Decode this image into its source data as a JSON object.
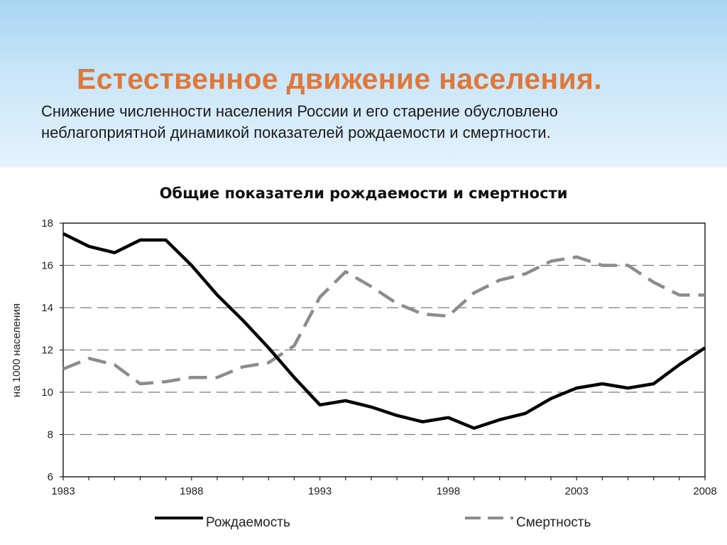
{
  "slide": {
    "title": "Естественное движение населения.",
    "subtitle": "Снижение численности населения России и его старение обусловлено неблагоприятной динамикой показателей рождаемости и смертности."
  },
  "colors": {
    "title": "#e0773a",
    "birth_line": "#000000",
    "death_line": "#8c8c8c",
    "grid": "#7a7a7a"
  },
  "chart_data": {
    "type": "line",
    "title": "Общие показатели рождаемости и смертности",
    "xlabel": "",
    "ylabel": "на 1000 населения",
    "ylim": [
      6,
      18
    ],
    "yticks": [
      6,
      8,
      10,
      12,
      14,
      16,
      18
    ],
    "xlim": [
      1983,
      2008
    ],
    "xticks": [
      1983,
      1988,
      1993,
      1998,
      2003,
      2008
    ],
    "x": [
      1983,
      1984,
      1985,
      1986,
      1987,
      1988,
      1989,
      1990,
      1991,
      1992,
      1993,
      1994,
      1995,
      1996,
      1997,
      1998,
      1999,
      2000,
      2001,
      2002,
      2003,
      2004,
      2005,
      2006,
      2007,
      2008
    ],
    "grid": "horizontal dashed",
    "legend_position": "bottom",
    "series": [
      {
        "name": "Рождаемость",
        "style": "solid",
        "values": [
          17.5,
          16.9,
          16.6,
          17.2,
          17.2,
          16.0,
          14.6,
          13.4,
          12.1,
          10.7,
          9.4,
          9.6,
          9.3,
          8.9,
          8.6,
          8.8,
          8.3,
          8.7,
          9.0,
          9.7,
          10.2,
          10.4,
          10.2,
          10.4,
          11.3,
          12.1
        ]
      },
      {
        "name": "Смертность",
        "style": "dashed",
        "values": [
          11.1,
          11.6,
          11.3,
          10.4,
          10.5,
          10.7,
          10.7,
          11.2,
          11.4,
          12.2,
          14.5,
          15.7,
          15.0,
          14.2,
          13.7,
          13.6,
          14.7,
          15.3,
          15.6,
          16.2,
          16.4,
          16.0,
          16.0,
          15.2,
          14.6,
          14.6
        ]
      }
    ]
  }
}
